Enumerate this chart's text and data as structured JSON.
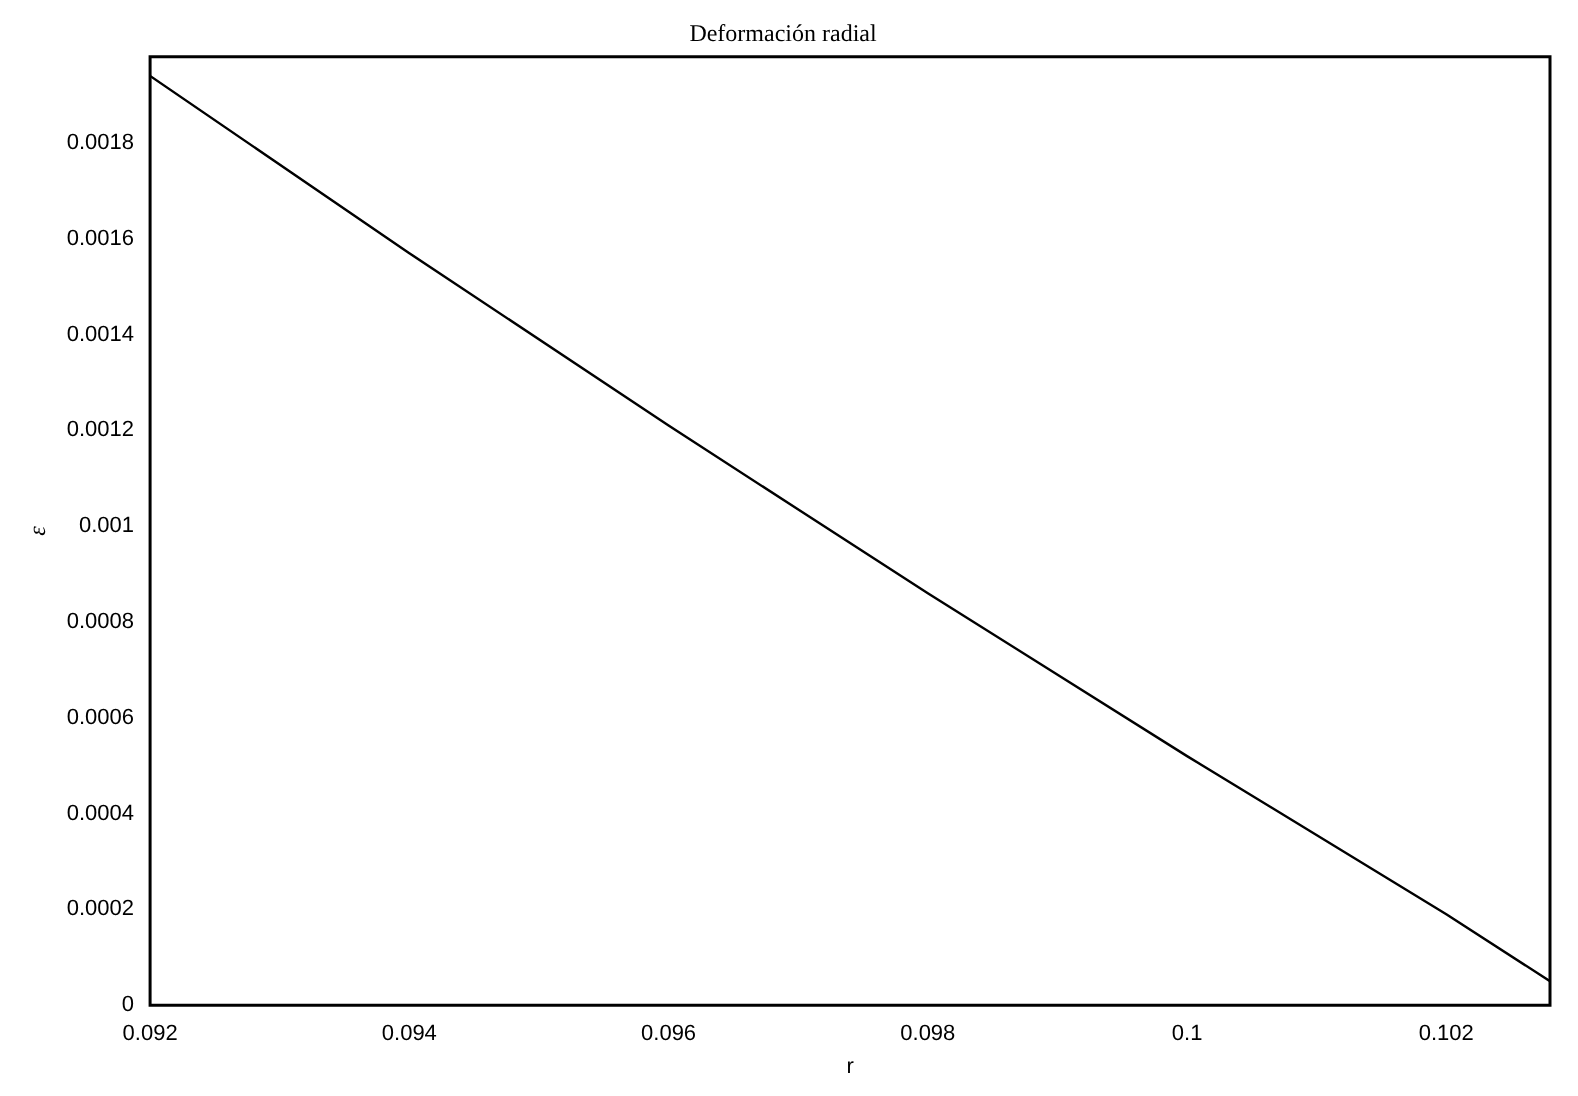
{
  "chart_data": {
    "type": "line",
    "title": "Deformación radial",
    "xlabel": "r",
    "ylabel": "ε",
    "x": [
      0.092,
      0.094,
      0.096,
      0.098,
      0.1,
      0.102,
      0.1028
    ],
    "series": [
      {
        "color": "#000000",
        "values": [
          0.00194,
          0.00157,
          0.00121,
          0.00086,
          0.00052,
          0.00019,
          5e-05
        ]
      }
    ],
    "xlim": [
      0.092,
      0.1028
    ],
    "xticks": [
      0.092,
      0.094,
      0.096,
      0.098,
      0.1,
      0.102
    ],
    "ylim": [
      0,
      0.00198
    ],
    "yticks": [
      0,
      0.0002,
      0.0004,
      0.0006,
      0.0008,
      0.001,
      0.0012,
      0.0014,
      0.0016,
      0.0018
    ],
    "grid": false,
    "legend": false,
    "marker": "none",
    "line_style": "solid"
  }
}
